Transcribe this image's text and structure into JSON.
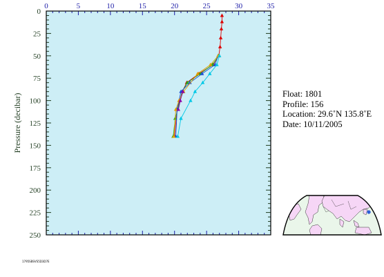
{
  "chart_data": {
    "type": "scatter",
    "title": "",
    "xlabel": "",
    "ylabel": "Pressure (decibar)",
    "xlim": [
      0,
      35
    ],
    "ylim": [
      250,
      0
    ],
    "x_ticks": [
      "0",
      "5",
      "10",
      "15",
      "20",
      "25",
      "30",
      "35"
    ],
    "y_ticks": [
      "0",
      "25",
      "50",
      "75",
      "100",
      "125",
      "150",
      "175",
      "200",
      "225",
      "250"
    ],
    "y_inverted": true,
    "x_axis_position": "top",
    "grid": false,
    "background_color": "#cdeef6",
    "series": [
      {
        "color": "#dd0000",
        "x": [
          27.4,
          27.4,
          27.3,
          27.2,
          27.1,
          26.9,
          26.0,
          23.8,
          21.9,
          21.2,
          20.8,
          20.4,
          20.0
        ],
        "y": [
          5,
          12,
          20,
          30,
          40,
          50,
          60,
          70,
          80,
          90,
          100,
          110,
          140
        ]
      },
      {
        "color": "#22aa22",
        "x": [
          26.9,
          25.9,
          24.0,
          22.0,
          21.2,
          20.5,
          20.1,
          19.8
        ],
        "y": [
          50,
          60,
          70,
          80,
          90,
          110,
          120,
          140
        ]
      },
      {
        "color": "#1a4fd6",
        "x": [
          26.8,
          26.3,
          24.3,
          22.4,
          21.0,
          20.4,
          20.2
        ],
        "y": [
          50,
          60,
          70,
          80,
          90,
          110,
          140
        ]
      },
      {
        "color": "#e0a000",
        "x": [
          26.8,
          25.6,
          23.6,
          21.4,
          20.7,
          20.2,
          19.9
        ],
        "y": [
          50,
          60,
          70,
          90,
          100,
          110,
          140
        ]
      },
      {
        "color": "#8800aa",
        "x": [
          21.3,
          20.9,
          20.6
        ],
        "y": [
          90,
          100,
          110
        ]
      },
      {
        "color": "#00c8e6",
        "x": [
          27.0,
          26.6,
          25.5,
          24.4,
          23.2,
          22.5,
          21.0,
          20.5
        ],
        "y": [
          50,
          60,
          70,
          80,
          90,
          100,
          120,
          140
        ]
      }
    ]
  },
  "info": {
    "float_line": "Float:  1801",
    "profile_line": "Profile:  156",
    "location_line": "Location:  29.6˚N  135.8˚E",
    "date_line": "Date:  10/11/2005"
  },
  "footer_note": "1795SBSVS5D3D7E",
  "map": {
    "land_color": "#f6d6f6",
    "ocean_color": "#eaf6ea",
    "marker_color": "#1a4fd6"
  }
}
